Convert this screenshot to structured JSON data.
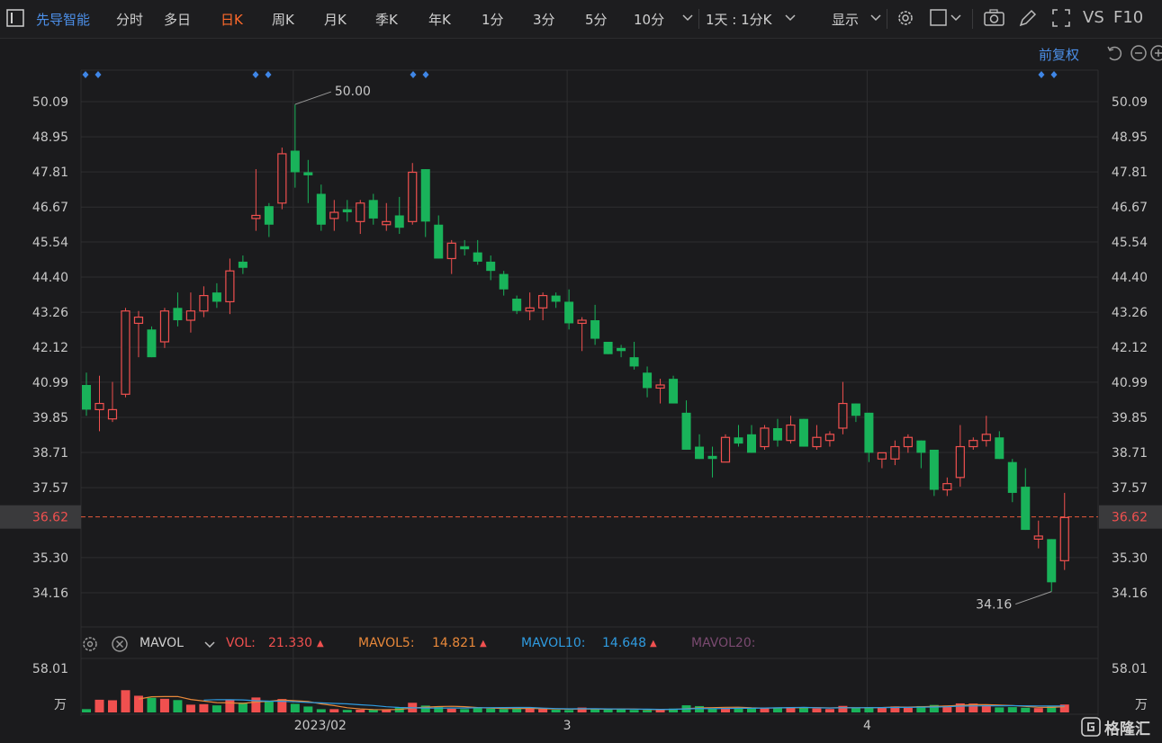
{
  "toolbar": {
    "stock_name": "先导智能",
    "tabs": [
      "分时",
      "多日",
      "日K",
      "周K",
      "月K",
      "季K",
      "年K",
      "1分",
      "3分",
      "5分",
      "10分"
    ],
    "active_tab": "日K",
    "interval_select": "1天 : 1分K",
    "display_label": "显示",
    "right_labels": [
      "VS",
      "F10"
    ]
  },
  "adjust_label": "前复权",
  "colors": {
    "up": "#f0504f",
    "down": "#19b35a",
    "ma5": "#e8883a",
    "ma10": "#2f9be0",
    "ma20": "#8a4a7a",
    "bg": "#1b1b1d",
    "grid": "#2e2e30"
  },
  "indicator": {
    "name": "MAVOL",
    "vol_label": "VOL:",
    "vol_value": "21.330",
    "ma5_label": "MAVOL5:",
    "ma5_value": "14.821",
    "ma10_label": "MAVOL10:",
    "ma10_value": "14.648",
    "ma20_label": "MAVOL20:",
    "up_arrow": "▲"
  },
  "logo_text": "格隆汇",
  "chart_data": {
    "type": "candlestick",
    "y_axis_ticks": [
      "50.09",
      "48.95",
      "47.81",
      "46.67",
      "45.54",
      "44.40",
      "43.26",
      "42.12",
      "40.99",
      "39.85",
      "38.71",
      "37.57",
      "36.62",
      "35.30",
      "34.16"
    ],
    "ylim": [
      33.3,
      50.7
    ],
    "current_price": "36.62",
    "annotations": {
      "high": "50.00",
      "low": "34.16"
    },
    "x_labels": [
      "2023/02",
      "3",
      "4"
    ],
    "x_label_index": [
      16,
      37,
      60
    ],
    "volume_axis": {
      "max_label": "58.01",
      "unit_label": "万"
    },
    "candles": [
      {
        "o": 40.9,
        "h": 41.3,
        "l": 39.9,
        "c": 40.1
      },
      {
        "o": 40.1,
        "h": 41.2,
        "l": 39.4,
        "c": 40.3
      },
      {
        "o": 39.8,
        "h": 41.0,
        "l": 39.7,
        "c": 40.1
      },
      {
        "o": 40.6,
        "h": 43.4,
        "l": 40.5,
        "c": 43.3
      },
      {
        "o": 42.9,
        "h": 43.3,
        "l": 41.8,
        "c": 43.1
      },
      {
        "o": 42.7,
        "h": 42.8,
        "l": 41.8,
        "c": 41.8
      },
      {
        "o": 42.3,
        "h": 43.4,
        "l": 42.1,
        "c": 43.3
      },
      {
        "o": 43.4,
        "h": 43.9,
        "l": 42.8,
        "c": 43.0
      },
      {
        "o": 43.0,
        "h": 43.9,
        "l": 42.6,
        "c": 43.3
      },
      {
        "o": 43.3,
        "h": 44.1,
        "l": 43.1,
        "c": 43.8
      },
      {
        "o": 43.9,
        "h": 44.2,
        "l": 43.4,
        "c": 43.6
      },
      {
        "o": 43.6,
        "h": 45.0,
        "l": 43.2,
        "c": 44.6
      },
      {
        "o": 44.9,
        "h": 45.1,
        "l": 44.5,
        "c": 44.7
      },
      {
        "o": 46.3,
        "h": 47.9,
        "l": 45.9,
        "c": 46.4
      },
      {
        "o": 46.7,
        "h": 46.8,
        "l": 45.7,
        "c": 46.1
      },
      {
        "o": 46.8,
        "h": 48.6,
        "l": 46.6,
        "c": 48.4
      },
      {
        "o": 48.5,
        "h": 50.0,
        "l": 47.3,
        "c": 47.8
      },
      {
        "o": 47.8,
        "h": 48.2,
        "l": 46.8,
        "c": 47.7
      },
      {
        "o": 47.1,
        "h": 47.4,
        "l": 45.9,
        "c": 46.1
      },
      {
        "o": 46.3,
        "h": 46.9,
        "l": 45.9,
        "c": 46.5
      },
      {
        "o": 46.6,
        "h": 46.9,
        "l": 46.2,
        "c": 46.5
      },
      {
        "o": 46.2,
        "h": 46.9,
        "l": 45.8,
        "c": 46.8
      },
      {
        "o": 46.9,
        "h": 47.1,
        "l": 46.1,
        "c": 46.3
      },
      {
        "o": 46.1,
        "h": 46.8,
        "l": 45.9,
        "c": 46.2
      },
      {
        "o": 46.4,
        "h": 47.0,
        "l": 45.8,
        "c": 46.0
      },
      {
        "o": 46.2,
        "h": 48.1,
        "l": 46.1,
        "c": 47.8
      },
      {
        "o": 47.9,
        "h": 47.9,
        "l": 45.7,
        "c": 46.2
      },
      {
        "o": 46.1,
        "h": 46.4,
        "l": 45.0,
        "c": 45.0
      },
      {
        "o": 45.0,
        "h": 45.6,
        "l": 44.5,
        "c": 45.5
      },
      {
        "o": 45.4,
        "h": 45.6,
        "l": 45.1,
        "c": 45.3
      },
      {
        "o": 45.2,
        "h": 45.6,
        "l": 44.8,
        "c": 44.9
      },
      {
        "o": 44.9,
        "h": 45.1,
        "l": 44.3,
        "c": 44.6
      },
      {
        "o": 44.5,
        "h": 44.6,
        "l": 43.8,
        "c": 44.0
      },
      {
        "o": 43.7,
        "h": 43.8,
        "l": 43.2,
        "c": 43.3
      },
      {
        "o": 43.3,
        "h": 43.9,
        "l": 43.0,
        "c": 43.4
      },
      {
        "o": 43.4,
        "h": 43.9,
        "l": 43.0,
        "c": 43.8
      },
      {
        "o": 43.8,
        "h": 43.9,
        "l": 43.4,
        "c": 43.6
      },
      {
        "o": 43.6,
        "h": 44.0,
        "l": 42.7,
        "c": 42.9
      },
      {
        "o": 42.9,
        "h": 43.1,
        "l": 42.0,
        "c": 43.0
      },
      {
        "o": 43.0,
        "h": 43.5,
        "l": 42.2,
        "c": 42.4
      },
      {
        "o": 42.3,
        "h": 42.3,
        "l": 41.9,
        "c": 41.9
      },
      {
        "o": 42.1,
        "h": 42.2,
        "l": 41.8,
        "c": 42.0
      },
      {
        "o": 41.8,
        "h": 42.3,
        "l": 41.4,
        "c": 41.5
      },
      {
        "o": 41.3,
        "h": 41.5,
        "l": 40.5,
        "c": 40.8
      },
      {
        "o": 40.8,
        "h": 41.1,
        "l": 40.3,
        "c": 40.9
      },
      {
        "o": 41.1,
        "h": 41.2,
        "l": 40.3,
        "c": 40.3
      },
      {
        "o": 40.0,
        "h": 40.4,
        "l": 38.8,
        "c": 38.8
      },
      {
        "o": 38.9,
        "h": 39.3,
        "l": 38.5,
        "c": 38.5
      },
      {
        "o": 38.6,
        "h": 38.9,
        "l": 37.9,
        "c": 38.5
      },
      {
        "o": 38.4,
        "h": 39.3,
        "l": 38.4,
        "c": 39.2
      },
      {
        "o": 39.2,
        "h": 39.6,
        "l": 38.9,
        "c": 39.0
      },
      {
        "o": 39.3,
        "h": 39.6,
        "l": 38.7,
        "c": 38.7
      },
      {
        "o": 38.9,
        "h": 39.6,
        "l": 38.8,
        "c": 39.5
      },
      {
        "o": 39.5,
        "h": 39.8,
        "l": 38.9,
        "c": 39.1
      },
      {
        "o": 39.1,
        "h": 39.9,
        "l": 39.0,
        "c": 39.6
      },
      {
        "o": 39.8,
        "h": 39.8,
        "l": 38.9,
        "c": 38.9
      },
      {
        "o": 38.9,
        "h": 39.6,
        "l": 38.8,
        "c": 39.2
      },
      {
        "o": 39.1,
        "h": 39.4,
        "l": 38.9,
        "c": 39.3
      },
      {
        "o": 39.5,
        "h": 41.0,
        "l": 39.3,
        "c": 40.3
      },
      {
        "o": 40.3,
        "h": 40.3,
        "l": 39.7,
        "c": 39.9
      },
      {
        "o": 40.0,
        "h": 40.0,
        "l": 38.4,
        "c": 38.7
      },
      {
        "o": 38.5,
        "h": 38.7,
        "l": 38.2,
        "c": 38.7
      },
      {
        "o": 38.5,
        "h": 39.1,
        "l": 38.3,
        "c": 38.9
      },
      {
        "o": 38.9,
        "h": 39.3,
        "l": 38.7,
        "c": 39.2
      },
      {
        "o": 39.1,
        "h": 39.1,
        "l": 38.2,
        "c": 38.7
      },
      {
        "o": 38.8,
        "h": 38.8,
        "l": 37.3,
        "c": 37.5
      },
      {
        "o": 37.5,
        "h": 37.9,
        "l": 37.3,
        "c": 37.7
      },
      {
        "o": 37.9,
        "h": 39.6,
        "l": 37.6,
        "c": 38.9
      },
      {
        "o": 38.9,
        "h": 39.2,
        "l": 38.8,
        "c": 39.1
      },
      {
        "o": 39.1,
        "h": 39.9,
        "l": 38.9,
        "c": 39.3
      },
      {
        "o": 39.2,
        "h": 39.4,
        "l": 38.5,
        "c": 38.5
      },
      {
        "o": 38.4,
        "h": 38.5,
        "l": 37.1,
        "c": 37.4
      },
      {
        "o": 37.6,
        "h": 38.2,
        "l": 36.2,
        "c": 36.2
      },
      {
        "o": 35.9,
        "h": 36.5,
        "l": 35.6,
        "c": 36.0
      },
      {
        "o": 35.9,
        "h": 35.9,
        "l": 34.2,
        "c": 34.5
      },
      {
        "o": 35.2,
        "h": 37.4,
        "l": 34.9,
        "c": 36.6
      }
    ],
    "volumes": [
      3.8,
      14.6,
      14.0,
      25.6,
      19.2,
      16.8,
      15.7,
      14.2,
      8.9,
      9.5,
      8.1,
      14.3,
      11.2,
      17.2,
      13.6,
      15.4,
      9.9,
      6.8,
      3.7,
      3.8,
      2.9,
      3.1,
      3.0,
      2.7,
      5.6,
      11.1,
      7.9,
      6.4,
      4.2,
      3.8,
      5.8,
      4.5,
      3.9,
      4.2,
      4.8,
      3.9,
      3.1,
      2.8,
      5.6,
      3.7,
      3.4,
      4.0,
      2.9,
      2.7,
      3.2,
      4.4,
      8.2,
      7.3,
      4.2,
      5.3,
      5.0,
      4.8,
      5.5,
      5.3,
      6.1,
      6.0,
      4.6,
      3.9,
      7.5,
      5.1,
      6.0,
      5.7,
      6.9,
      6.6,
      7.3,
      8.6,
      7.9,
      10.4,
      10.2,
      7.4,
      5.8,
      6.1,
      5.4,
      5.0,
      6.8,
      9.1
    ]
  }
}
